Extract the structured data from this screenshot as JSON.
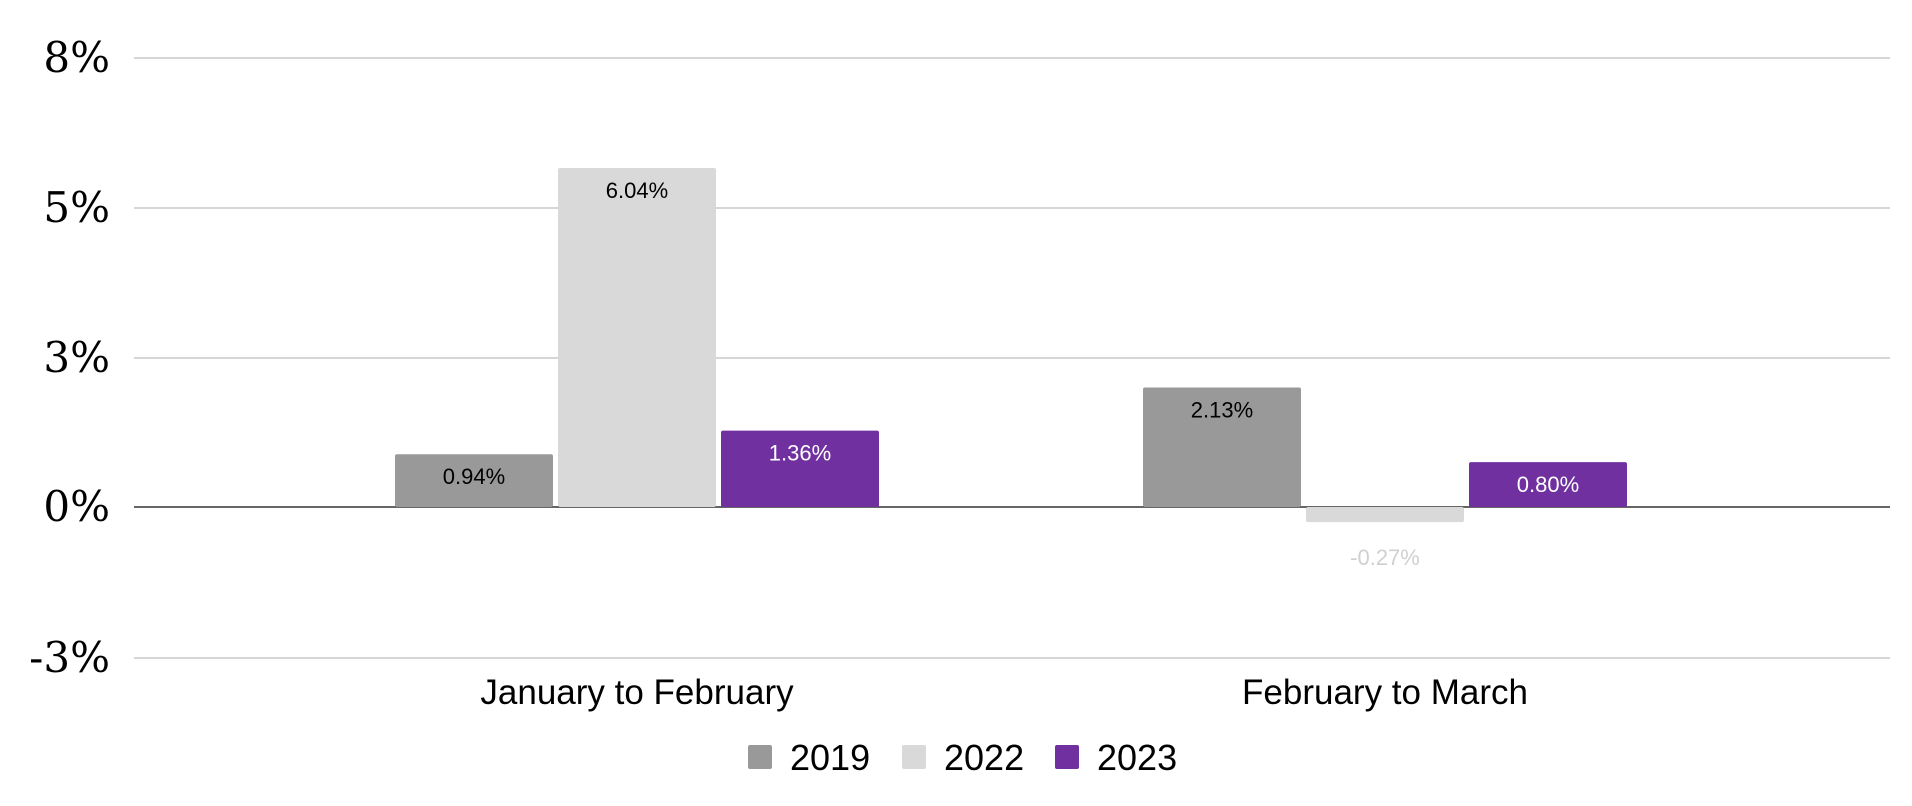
{
  "chart_data": {
    "type": "bar",
    "categories": [
      "January to February",
      "February to March"
    ],
    "series": [
      {
        "name": "2019",
        "values": [
          0.94,
          2.13
        ],
        "labels": [
          "0.94%",
          "2.13%"
        ],
        "color": "#999999",
        "label_color": "#000000"
      },
      {
        "name": "2022",
        "values": [
          6.04,
          -0.27
        ],
        "labels": [
          "6.04%",
          "-0.27%"
        ],
        "color": "#d9d9d9",
        "label_color": "#000000",
        "negative_label_color": "#d0d0d0"
      },
      {
        "name": "2023",
        "values": [
          1.36,
          0.8
        ],
        "labels": [
          "1.36%",
          "0.80%"
        ],
        "color": "#7030a0",
        "label_color": "#ffffff"
      }
    ],
    "yticks": [
      {
        "value": 8,
        "label": "8%"
      },
      {
        "value": 5,
        "label": "5%"
      },
      {
        "value": 3,
        "label": "3%"
      },
      {
        "value": 0,
        "label": "0%"
      },
      {
        "value": -3,
        "label": "-3%"
      }
    ],
    "ylim": [
      -3,
      8
    ],
    "grid": true,
    "legend_position": "bottom",
    "title": "",
    "xlabel": "",
    "ylabel": ""
  }
}
